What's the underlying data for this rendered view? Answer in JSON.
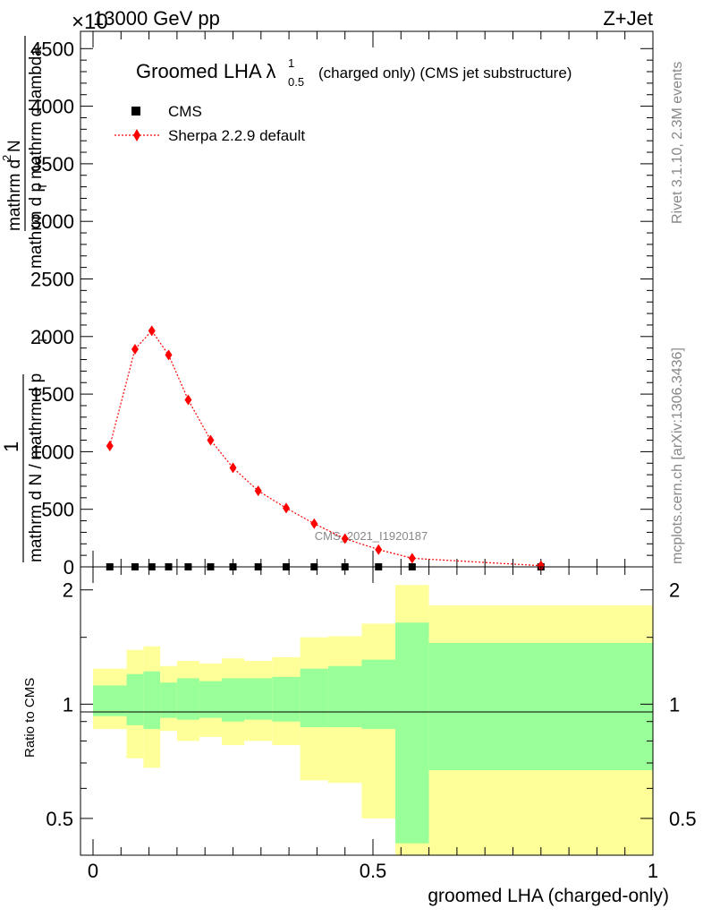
{
  "header": {
    "left": "13000 GeV pp",
    "right": "Z+Jet",
    "exponent": "×10"
  },
  "side_text": {
    "rivet": "Rivet 3.1.10,  2.3M events",
    "mcplots": "mcplots.cern.ch [arXiv:1306.3436]"
  },
  "main": {
    "title_main": "Groomed LHA λ",
    "title_sup": "1",
    "title_sub": "0.5",
    "title_tail": "(charged only) (CMS jet substructure)",
    "ylabel": {
      "numerator": "mathrm d",
      "numerator_sup": "2",
      "numerator_end": "N",
      "denominator": "mathrm d p",
      "denominator_sub": "T",
      "denominator_end": " mathrm d lambda",
      "prefix_num": "1",
      "prefix_den": "mathrm d N / mathrm d p",
      "prefix_den_sub": "T"
    },
    "yticks": [
      "0",
      "500",
      "1000",
      "1500",
      "2000",
      "2500",
      "3000",
      "3500",
      "4000",
      "4500"
    ],
    "watermark": "CMS_2021_I1920187",
    "legend": {
      "cms": "CMS",
      "sherpa": "Sherpa 2.2.9 default"
    }
  },
  "ratio": {
    "ylabel": "Ratio to CMS",
    "yticks": [
      "0.5",
      "1",
      "2"
    ],
    "xticks": [
      "0",
      "0.5",
      "1"
    ],
    "xlabel": "groomed LHA (charged-only)"
  },
  "colors": {
    "sherpa": "#ff0000",
    "band_inner": "#99ff99",
    "band_outer": "#ffff99",
    "cms": "#000000"
  },
  "chart_data": [
    {
      "type": "scatter",
      "panel": "main",
      "xlim": [
        0,
        1
      ],
      "ylim": [
        0,
        4650
      ],
      "series": [
        {
          "name": "CMS",
          "x": [
            0.03,
            0.075,
            0.105,
            0.135,
            0.17,
            0.21,
            0.25,
            0.295,
            0.345,
            0.395,
            0.45,
            0.51,
            0.57,
            0.8
          ],
          "y": [
            0,
            0,
            0,
            0,
            0,
            0,
            0,
            0,
            0,
            0,
            0,
            0,
            0,
            0
          ]
        },
        {
          "name": "Sherpa 2.2.9 default",
          "x": [
            0.03,
            0.075,
            0.105,
            0.135,
            0.17,
            0.21,
            0.25,
            0.295,
            0.345,
            0.395,
            0.45,
            0.51,
            0.57,
            0.8
          ],
          "y": [
            1050,
            1890,
            2050,
            1840,
            1450,
            1100,
            860,
            660,
            510,
            375,
            245,
            150,
            75,
            10
          ]
        }
      ]
    },
    {
      "type": "area",
      "panel": "ratio",
      "ylabel": "Ratio to CMS",
      "xlabel": "groomed LHA (charged-only)",
      "xlim": [
        0,
        1
      ],
      "ylim": [
        0.4,
        2.3
      ],
      "scale": "log",
      "bins": [
        {
          "x0": 0.0,
          "x1": 0.06,
          "inner": [
            0.93,
            1.12
          ],
          "outer": [
            0.86,
            1.24
          ]
        },
        {
          "x0": 0.06,
          "x1": 0.09,
          "inner": [
            0.88,
            1.2
          ],
          "outer": [
            0.72,
            1.39
          ]
        },
        {
          "x0": 0.09,
          "x1": 0.12,
          "inner": [
            0.86,
            1.22
          ],
          "outer": [
            0.68,
            1.42
          ]
        },
        {
          "x0": 0.12,
          "x1": 0.15,
          "inner": [
            0.92,
            1.14
          ],
          "outer": [
            0.85,
            1.26
          ]
        },
        {
          "x0": 0.15,
          "x1": 0.19,
          "inner": [
            0.91,
            1.17
          ],
          "outer": [
            0.8,
            1.3
          ]
        },
        {
          "x0": 0.19,
          "x1": 0.23,
          "inner": [
            0.92,
            1.15
          ],
          "outer": [
            0.82,
            1.28
          ]
        },
        {
          "x0": 0.23,
          "x1": 0.27,
          "inner": [
            0.9,
            1.17
          ],
          "outer": [
            0.78,
            1.32
          ]
        },
        {
          "x0": 0.27,
          "x1": 0.32,
          "inner": [
            0.91,
            1.17
          ],
          "outer": [
            0.8,
            1.3
          ]
        },
        {
          "x0": 0.32,
          "x1": 0.37,
          "inner": [
            0.9,
            1.18
          ],
          "outer": [
            0.78,
            1.33
          ]
        },
        {
          "x0": 0.37,
          "x1": 0.42,
          "inner": [
            0.87,
            1.24
          ],
          "outer": [
            0.63,
            1.5
          ]
        },
        {
          "x0": 0.42,
          "x1": 0.48,
          "inner": [
            0.87,
            1.26
          ],
          "outer": [
            0.62,
            1.51
          ]
        },
        {
          "x0": 0.48,
          "x1": 0.54,
          "inner": [
            0.86,
            1.31
          ],
          "outer": [
            0.5,
            1.63
          ]
        },
        {
          "x0": 0.54,
          "x1": 0.6,
          "inner": [
            0.43,
            1.64
          ],
          "outer": [
            0.3,
            2.06
          ]
        },
        {
          "x0": 0.6,
          "x1": 1.0,
          "inner": [
            0.67,
            1.45
          ],
          "outer": [
            0.3,
            1.82
          ]
        }
      ]
    }
  ]
}
